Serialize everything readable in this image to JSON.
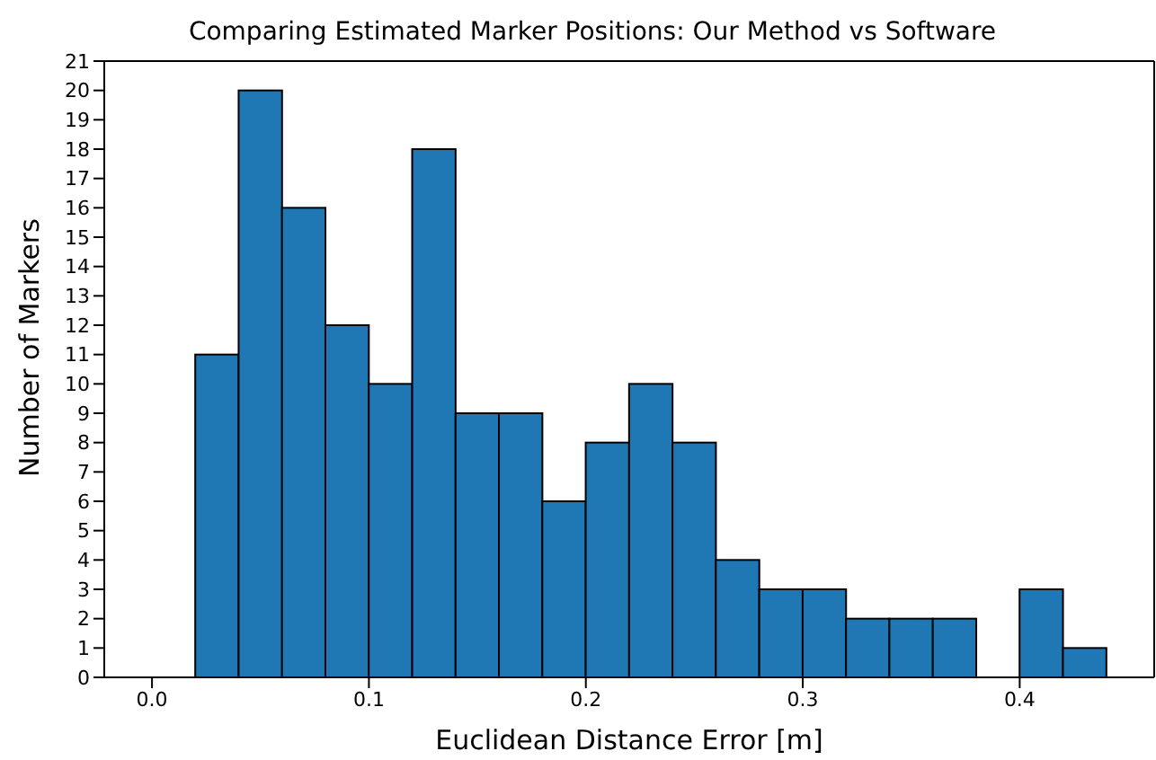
{
  "chart_data": {
    "type": "histogram",
    "title": "Comparing Estimated Marker Positions: Our Method vs Software",
    "xlabel": "Euclidean Distance Error [m]",
    "ylabel": "Number of Markers",
    "bins": [
      0,
      0.02,
      0.04,
      0.06,
      0.08,
      0.1,
      0.12,
      0.14,
      0.16,
      0.18,
      0.2,
      0.22,
      0.24,
      0.26,
      0.28,
      0.3,
      0.32,
      0.34,
      0.36,
      0.38,
      0.4,
      0.42,
      0.44
    ],
    "values": [
      0,
      11,
      20,
      16,
      12,
      10,
      18,
      9,
      9,
      6,
      8,
      10,
      8,
      4,
      3,
      3,
      2,
      2,
      2,
      0,
      3,
      1
    ],
    "color": "#1f77b4",
    "xlim": [
      -0.022,
      0.462
    ],
    "ylim": [
      0,
      21
    ],
    "xticks": [
      {
        "value": 0,
        "label": "0.0"
      },
      0.1,
      0.2,
      0.3,
      0.4
    ],
    "yticks": [
      0,
      1,
      2,
      3,
      4,
      5,
      6,
      7,
      8,
      9,
      10,
      11,
      12,
      13,
      14,
      15,
      16,
      17,
      18,
      19,
      20,
      21
    ]
  }
}
